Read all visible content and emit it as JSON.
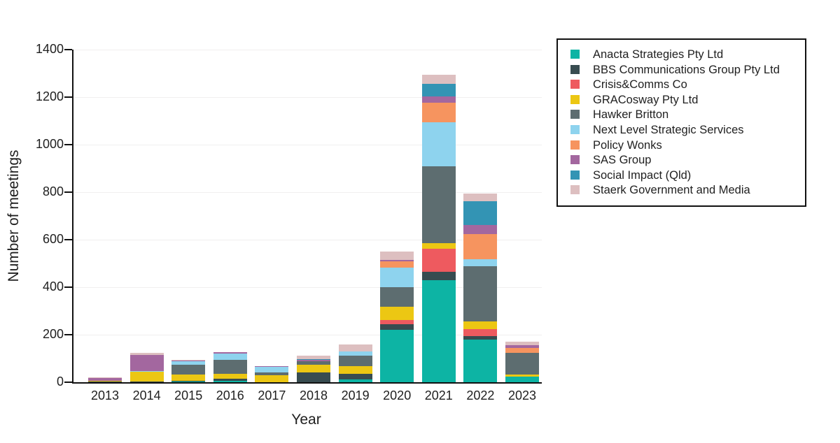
{
  "figure": {
    "background": "#ffffff",
    "text_color": "#1f1f1f",
    "axis_color": "#111111",
    "gridline_color": "#f0efef"
  },
  "chart_data": {
    "type": "bar",
    "stacked": true,
    "title": "",
    "xlabel": "Year",
    "ylabel": "Number of meetings",
    "ylim": [
      0,
      1400
    ],
    "yticks": [
      0,
      200,
      400,
      600,
      800,
      1000,
      1200,
      1400
    ],
    "grid": "horizontal-faint",
    "legend_position": "outside-upper-right",
    "categories": [
      "2013",
      "2014",
      "2015",
      "2016",
      "2017",
      "2018",
      "2019",
      "2020",
      "2021",
      "2022",
      "2023"
    ],
    "series": [
      {
        "name": "Anacta Strategies Pty Ltd",
        "color": "#0db4a4",
        "values": [
          0,
          0,
          2,
          6,
          0,
          0,
          12,
          220,
          430,
          179,
          25
        ]
      },
      {
        "name": "BBS Communications Group Pty Ltd",
        "color": "#384c50",
        "values": [
          2,
          4,
          3,
          10,
          0,
          40,
          24,
          23,
          34,
          15,
          0
        ]
      },
      {
        "name": "Crisis&Comms Co",
        "color": "#ee5a5f",
        "values": [
          0,
          0,
          0,
          0,
          0,
          0,
          0,
          20,
          98,
          29,
          0
        ]
      },
      {
        "name": "GRACosway Pty Ltd",
        "color": "#ecc713",
        "values": [
          5,
          40,
          27,
          18,
          28,
          35,
          33,
          54,
          24,
          34,
          7
        ]
      },
      {
        "name": "Hawker Britton",
        "color": "#5d6d70",
        "values": [
          0,
          0,
          42,
          59,
          12,
          14,
          43,
          83,
          324,
          230,
          91
        ]
      },
      {
        "name": "Next Level Strategic Services",
        "color": "#8ed3ee",
        "values": [
          0,
          2,
          13,
          27,
          24,
          0,
          17,
          83,
          184,
          31,
          0
        ]
      },
      {
        "name": "Policy Wonks",
        "color": "#f6945f",
        "values": [
          0,
          0,
          0,
          0,
          0,
          0,
          0,
          25,
          82,
          106,
          21
        ]
      },
      {
        "name": "SAS Group",
        "color": "#a3679f",
        "values": [
          10,
          70,
          3,
          6,
          3,
          4,
          0,
          8,
          27,
          39,
          12
        ]
      },
      {
        "name": "Social Impact (Qld)",
        "color": "#3394b4",
        "values": [
          0,
          0,
          0,
          0,
          0,
          4,
          0,
          0,
          54,
          98,
          0
        ]
      },
      {
        "name": "Staerk Government and Media",
        "color": "#ddbfc0",
        "values": [
          3,
          8,
          5,
          0,
          0,
          14,
          31,
          35,
          36,
          34,
          16
        ]
      }
    ]
  }
}
